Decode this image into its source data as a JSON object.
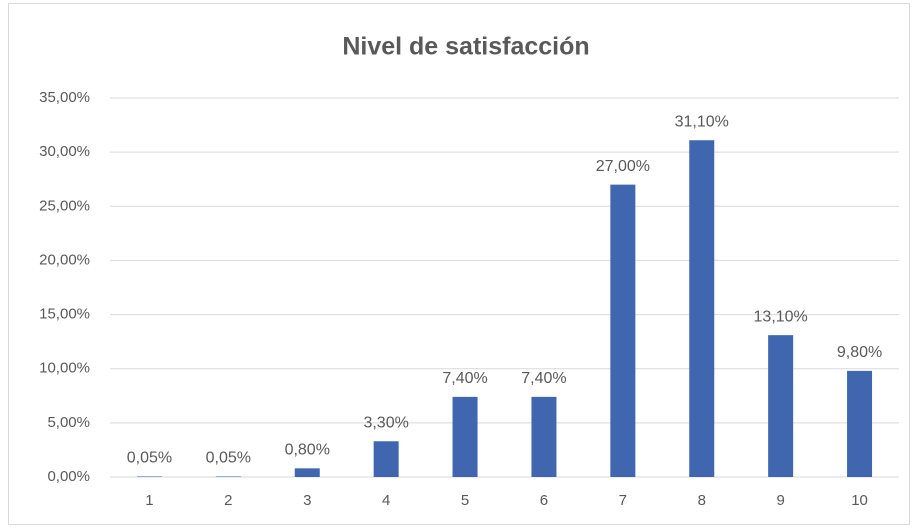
{
  "chart_data": {
    "type": "bar",
    "title": "Nivel de satisfacción",
    "categories": [
      "1",
      "2",
      "3",
      "4",
      "5",
      "6",
      "7",
      "8",
      "9",
      "10"
    ],
    "values": [
      0.05,
      0.05,
      0.8,
      3.3,
      7.4,
      7.4,
      27.0,
      31.1,
      13.1,
      9.8
    ],
    "value_labels": [
      "0,05%",
      "0,05%",
      "0,80%",
      "3,30%",
      "7,40%",
      "7,40%",
      "27,00%",
      "31,10%",
      "13,10%",
      "9,80%"
    ],
    "color": "#4066b0",
    "ylim": [
      0,
      35
    ],
    "yticks": [
      {
        "value": 0,
        "label": "0,00%"
      },
      {
        "value": 5,
        "label": "5,00%"
      },
      {
        "value": 10,
        "label": "10,00%"
      },
      {
        "value": 15,
        "label": "15,00%"
      },
      {
        "value": 20,
        "label": "20,00%"
      },
      {
        "value": 25,
        "label": "25,00%"
      },
      {
        "value": 30,
        "label": "30,00%"
      },
      {
        "value": 35,
        "label": "35,00%"
      }
    ],
    "grid": true
  }
}
